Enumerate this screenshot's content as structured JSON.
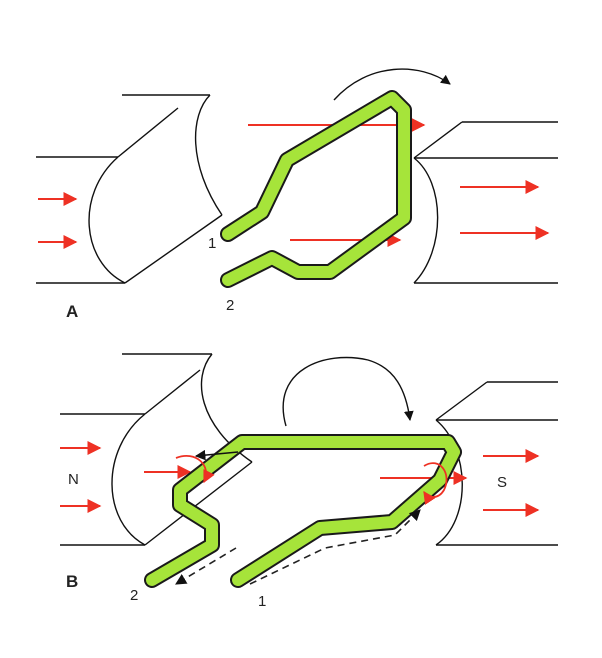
{
  "colors": {
    "coil": "#a6e43a",
    "flux": "#ee3124",
    "outline": "#111111"
  },
  "panel_a": {
    "label": "A",
    "terminal_1": "1",
    "terminal_2": "2"
  },
  "panel_b": {
    "label": "B",
    "terminal_1": "1",
    "terminal_2": "2",
    "north_pole": "N",
    "south_pole": "S"
  }
}
